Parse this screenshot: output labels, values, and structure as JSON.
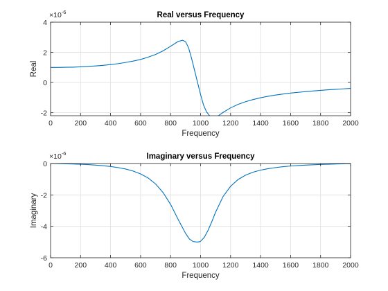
{
  "chart_data": [
    {
      "type": "line",
      "title": "Real versus Frequency",
      "xlabel": "Frequency",
      "ylabel": "Real",
      "y_exponent_base": "×10",
      "y_exponent": "-6",
      "xlim": [
        0,
        2000
      ],
      "ylim": [
        -2.2,
        4
      ],
      "xticks": [
        0,
        200,
        400,
        600,
        800,
        1000,
        1200,
        1400,
        1600,
        1800,
        2000
      ],
      "xtick_labels": [
        "0",
        "200",
        "400",
        "600",
        "800",
        "1000",
        "1200",
        "1400",
        "1600",
        "1800",
        "2000"
      ],
      "yticks": [
        -2,
        0,
        2,
        4
      ],
      "ytick_labels": [
        "-2",
        "0",
        "2",
        "4"
      ],
      "grid": true,
      "series": [
        {
          "color": "#0072bd",
          "x": [
            0,
            50,
            100,
            150,
            200,
            250,
            300,
            350,
            400,
            450,
            500,
            550,
            600,
            650,
            700,
            750,
            800,
            850,
            880,
            900,
            920,
            940,
            960,
            980,
            1000,
            1020,
            1040,
            1060,
            1080,
            1100,
            1120,
            1140,
            1160,
            1180,
            1200,
            1250,
            1300,
            1350,
            1400,
            1450,
            1500,
            1550,
            1600,
            1650,
            1700,
            1750,
            1800,
            1850,
            1900,
            1950,
            2000
          ],
          "y": [
            1.0,
            1.0,
            1.01,
            1.02,
            1.04,
            1.07,
            1.1,
            1.14,
            1.19,
            1.25,
            1.33,
            1.42,
            1.53,
            1.68,
            1.86,
            2.1,
            2.4,
            2.72,
            2.8,
            2.7,
            2.3,
            1.6,
            0.8,
            0.0,
            -0.8,
            -1.5,
            -1.95,
            -2.2,
            -2.35,
            -2.3,
            -2.2,
            -2.05,
            -1.92,
            -1.8,
            -1.68,
            -1.45,
            -1.27,
            -1.13,
            -1.01,
            -0.91,
            -0.83,
            -0.76,
            -0.7,
            -0.65,
            -0.6,
            -0.56,
            -0.52,
            -0.48,
            -0.45,
            -0.42,
            -0.39
          ]
        }
      ]
    },
    {
      "type": "line",
      "title": "Imaginary versus Frequency",
      "xlabel": "Frequency",
      "ylabel": "Imaginary",
      "y_exponent_base": "×10",
      "y_exponent": "-6",
      "xlim": [
        0,
        2000
      ],
      "ylim": [
        -6,
        0
      ],
      "xticks": [
        0,
        200,
        400,
        600,
        800,
        1000,
        1200,
        1400,
        1600,
        1800,
        2000
      ],
      "xtick_labels": [
        "0",
        "200",
        "400",
        "600",
        "800",
        "1000",
        "1200",
        "1400",
        "1600",
        "1800",
        "2000"
      ],
      "yticks": [
        -6,
        -4,
        -2,
        0
      ],
      "ytick_labels": [
        "-6",
        "-4",
        "-2",
        "0"
      ],
      "grid": true,
      "series": [
        {
          "color": "#0072bd",
          "x": [
            0,
            50,
            100,
            150,
            200,
            250,
            300,
            350,
            400,
            450,
            500,
            550,
            600,
            650,
            700,
            750,
            800,
            850,
            900,
            925,
            950,
            975,
            990,
            1000,
            1025,
            1050,
            1075,
            1100,
            1150,
            1200,
            1250,
            1300,
            1350,
            1400,
            1450,
            1500,
            1550,
            1600,
            1650,
            1700,
            1750,
            1800,
            1850,
            1900,
            1950,
            2000
          ],
          "y": [
            0.0,
            -0.01,
            -0.02,
            -0.03,
            -0.05,
            -0.07,
            -0.1,
            -0.14,
            -0.19,
            -0.26,
            -0.35,
            -0.48,
            -0.66,
            -0.92,
            -1.3,
            -1.85,
            -2.6,
            -3.55,
            -4.45,
            -4.8,
            -4.97,
            -5.0,
            -4.99,
            -4.95,
            -4.7,
            -4.25,
            -3.7,
            -3.1,
            -2.1,
            -1.45,
            -1.02,
            -0.74,
            -0.55,
            -0.42,
            -0.33,
            -0.26,
            -0.2,
            -0.16,
            -0.13,
            -0.1,
            -0.08,
            -0.06,
            -0.05,
            -0.03,
            -0.02,
            -0.01
          ]
        }
      ]
    }
  ]
}
